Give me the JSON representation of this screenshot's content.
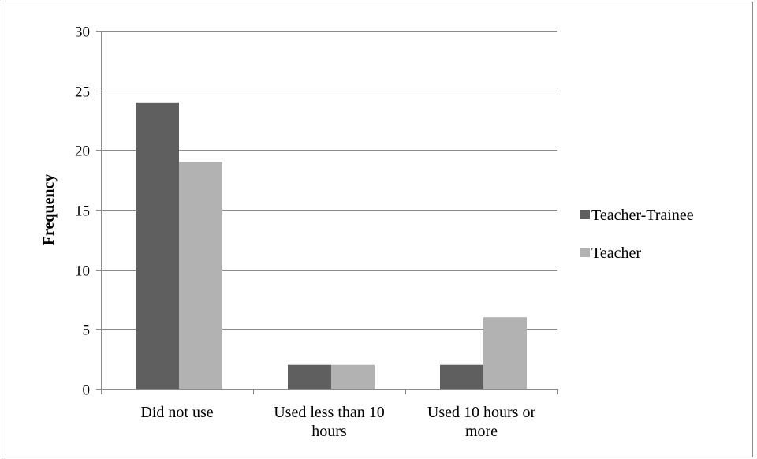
{
  "chart_data": {
    "type": "bar",
    "title": "",
    "xlabel": "",
    "ylabel": "Frequency",
    "ylim": [
      0,
      30
    ],
    "yticks": [
      0,
      5,
      10,
      15,
      20,
      25,
      30
    ],
    "grid": true,
    "legend_position": "right",
    "categories": [
      [
        "Did not use"
      ],
      [
        "Used less than 10",
        "hours"
      ],
      [
        "Used 10 hours or",
        "more"
      ]
    ],
    "series": [
      {
        "name": "Teacher-Trainee",
        "color": "#5f5f5f",
        "values": [
          24,
          2,
          2
        ]
      },
      {
        "name": "Teacher",
        "color": "#b2b2b2",
        "values": [
          19,
          2,
          6
        ]
      }
    ]
  }
}
